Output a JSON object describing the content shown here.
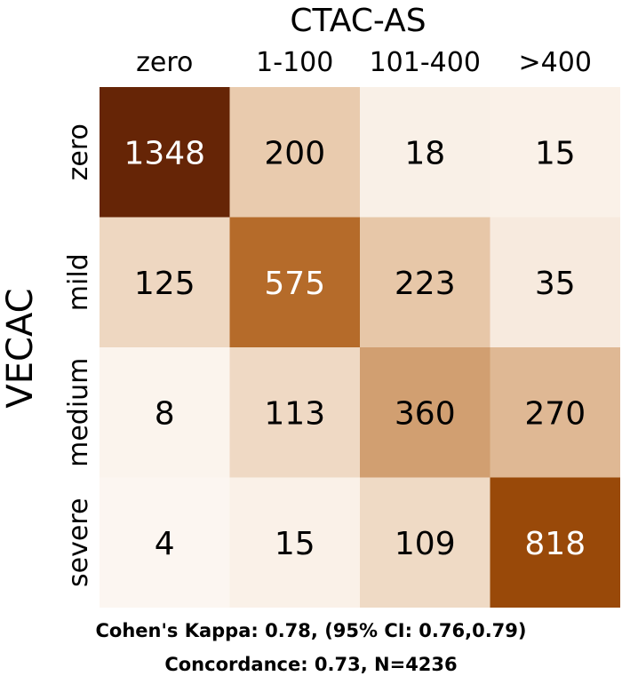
{
  "chart_data": {
    "type": "heatmap",
    "title": "CTAC-AS",
    "xlabel": "CTAC-AS",
    "ylabel": "VECAC",
    "x_categories": [
      "zero",
      "1-100",
      "101-400",
      ">400"
    ],
    "y_categories": [
      "zero",
      "mild",
      "medium",
      "severe"
    ],
    "values": [
      [
        1348,
        200,
        18,
        15
      ],
      [
        125,
        575,
        223,
        35
      ],
      [
        8,
        113,
        360,
        270
      ],
      [
        4,
        15,
        109,
        818
      ]
    ],
    "value_range": [
      0,
      1348
    ],
    "colormap": [
      "#fefbf8",
      "#e8c9ab",
      "#a8530a",
      "#662506"
    ],
    "legend": "none",
    "grid": false
  },
  "footer": {
    "kappa": "Cohen's Kappa: 0.78, (95% CI: 0.76,0.79)",
    "concordance": "Concordance: 0.73, N=4236"
  }
}
